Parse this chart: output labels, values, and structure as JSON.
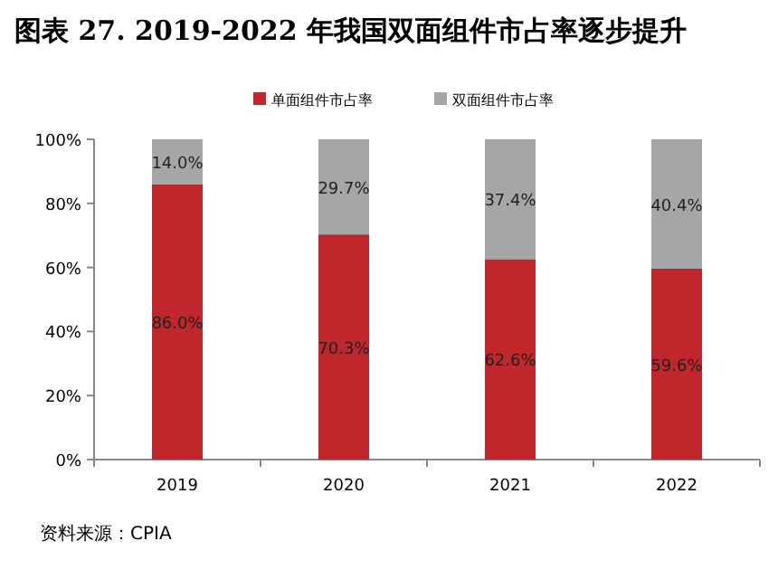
{
  "chart_data": {
    "type": "bar",
    "title": "图表 27. 2019-2022 年我国双面组件市占率逐步提升",
    "categories": [
      "2019",
      "2020",
      "2021",
      "2022"
    ],
    "stacked": true,
    "legend": "top",
    "grid": false,
    "series": [
      {
        "name": "单面组件市占率",
        "color": "#c0272d",
        "values": [
          86.0,
          70.3,
          62.6,
          59.6
        ],
        "value_labels": [
          "86.0%",
          "70.3%",
          "62.6%",
          "59.6%"
        ]
      },
      {
        "name": "双面组件市占率",
        "color": "#a6a6a6",
        "values": [
          14.0,
          29.7,
          37.4,
          40.4
        ],
        "value_labels": [
          "14.0%",
          "29.7%",
          "37.4%",
          "40.4%"
        ]
      }
    ],
    "ylim": [
      0,
      100
    ],
    "yticks": [
      {
        "value": 0,
        "label": "0%"
      },
      {
        "value": 20,
        "label": "20%"
      },
      {
        "value": 40,
        "label": "40%"
      },
      {
        "value": 60,
        "label": "60%"
      },
      {
        "value": 80,
        "label": "80%"
      },
      {
        "value": 100,
        "label": "100%"
      }
    ],
    "annotations": [
      "资料来源：CPIA"
    ]
  }
}
